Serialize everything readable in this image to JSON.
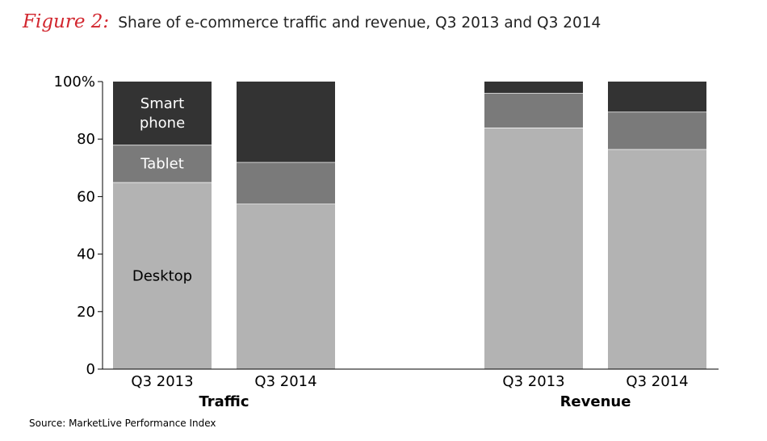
{
  "header": {
    "figure_label": "Figure 2:",
    "title": "Share of e-commerce traffic and revenue, Q3 2013 and Q3 2014"
  },
  "source": "Source: MarketLive Performance Index",
  "colors": {
    "desktop": "#b3b3b3",
    "tablet": "#7a7a7a",
    "smartphone": "#333333",
    "axis": "#000000",
    "figure_label": "#d2262e"
  },
  "chart_data": {
    "type": "bar",
    "stacked": true,
    "title": "Share of e-commerce traffic and revenue, Q3 2013 and Q3 2014",
    "ylim": [
      0,
      100
    ],
    "yticks": [
      0,
      20,
      40,
      60,
      80,
      100
    ],
    "ytick_labels": [
      "0",
      "20",
      "40",
      "60",
      "80",
      "100%"
    ],
    "grid": false,
    "groups": [
      {
        "label": "Traffic",
        "categories": [
          "Q3 2013",
          "Q3 2014"
        ]
      },
      {
        "label": "Revenue",
        "categories": [
          "Q3 2013",
          "Q3 2014"
        ]
      }
    ],
    "series": [
      {
        "key": "desktop",
        "values": [
          65,
          57.5,
          84,
          76.5
        ]
      },
      {
        "key": "tablet",
        "values": [
          13,
          14.5,
          12,
          13
        ]
      },
      {
        "key": "smartphone",
        "values": [
          22,
          28,
          4,
          10.5
        ]
      }
    ],
    "segment_labels": {
      "desktop": "Desktop",
      "tablet": "Tablet",
      "smartphone": [
        "Smart",
        "phone"
      ]
    }
  }
}
